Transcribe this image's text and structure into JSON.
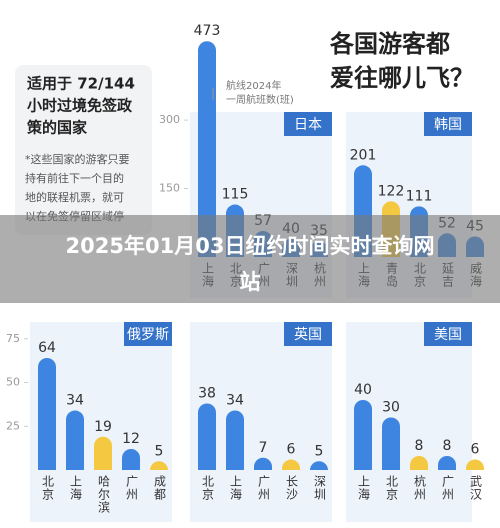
{
  "headline": [
    "各国游客都",
    "爱往哪儿飞？"
  ],
  "note": {
    "title": [
      "适用于 72/144",
      "小时过境免签政",
      "策的国家"
    ],
    "body": [
      "*这些国家的游客只要",
      "持有前往下一个目的",
      "地的联程机票，就可",
      "以在免签停留区域停"
    ]
  },
  "annotation": [
    "航线2024年",
    "一周航班数(班)"
  ],
  "banner": [
    "2025年01月03日纽约时间实时查询网",
    "站"
  ],
  "chart_data": [
    {
      "type": "bar",
      "title": "日本",
      "categories": [
        "上海",
        "北京",
        "广州",
        "深圳",
        "杭州"
      ],
      "values": [
        473,
        115,
        57,
        40,
        35
      ],
      "colors": [
        "#3d85e0",
        "#3d85e0",
        "#3d85e0",
        "#3d85e0",
        "#3d85e0"
      ],
      "ylim": [
        0,
        480
      ],
      "yticks": [
        150,
        300
      ]
    },
    {
      "type": "bar",
      "title": "韩国",
      "categories": [
        "上海",
        "青岛",
        "北京",
        "延吉",
        "威海"
      ],
      "values": [
        201,
        122,
        111,
        52,
        45
      ],
      "colors": [
        "#3d85e0",
        "#f5c842",
        "#3d85e0",
        "#3d85e0",
        "#3d85e0"
      ],
      "ylim": [
        0,
        480
      ]
    },
    {
      "type": "bar",
      "title": "俄罗斯",
      "categories": [
        "北京",
        "上海",
        "哈尔滨",
        "广州",
        "成都"
      ],
      "values": [
        64,
        34,
        19,
        12,
        5
      ],
      "colors": [
        "#3d85e0",
        "#3d85e0",
        "#f5c842",
        "#3d85e0",
        "#f5c842"
      ],
      "ylim": [
        0,
        80
      ],
      "yticks": [
        25,
        50,
        75
      ]
    },
    {
      "type": "bar",
      "title": "英国",
      "categories": [
        "北京",
        "上海",
        "广州",
        "长沙",
        "深圳"
      ],
      "values": [
        38,
        34,
        7,
        6,
        5
      ],
      "colors": [
        "#3d85e0",
        "#3d85e0",
        "#3d85e0",
        "#f5c842",
        "#3d85e0"
      ],
      "ylim": [
        0,
        80
      ]
    },
    {
      "type": "bar",
      "title": "美国",
      "categories": [
        "上海",
        "北京",
        "杭州",
        "广州",
        "武汉"
      ],
      "values": [
        40,
        30,
        8,
        8,
        6
      ],
      "colors": [
        "#3d85e0",
        "#3d85e0",
        "#f5c842",
        "#3d85e0",
        "#f5c842"
      ],
      "ylim": [
        0,
        80
      ]
    }
  ]
}
